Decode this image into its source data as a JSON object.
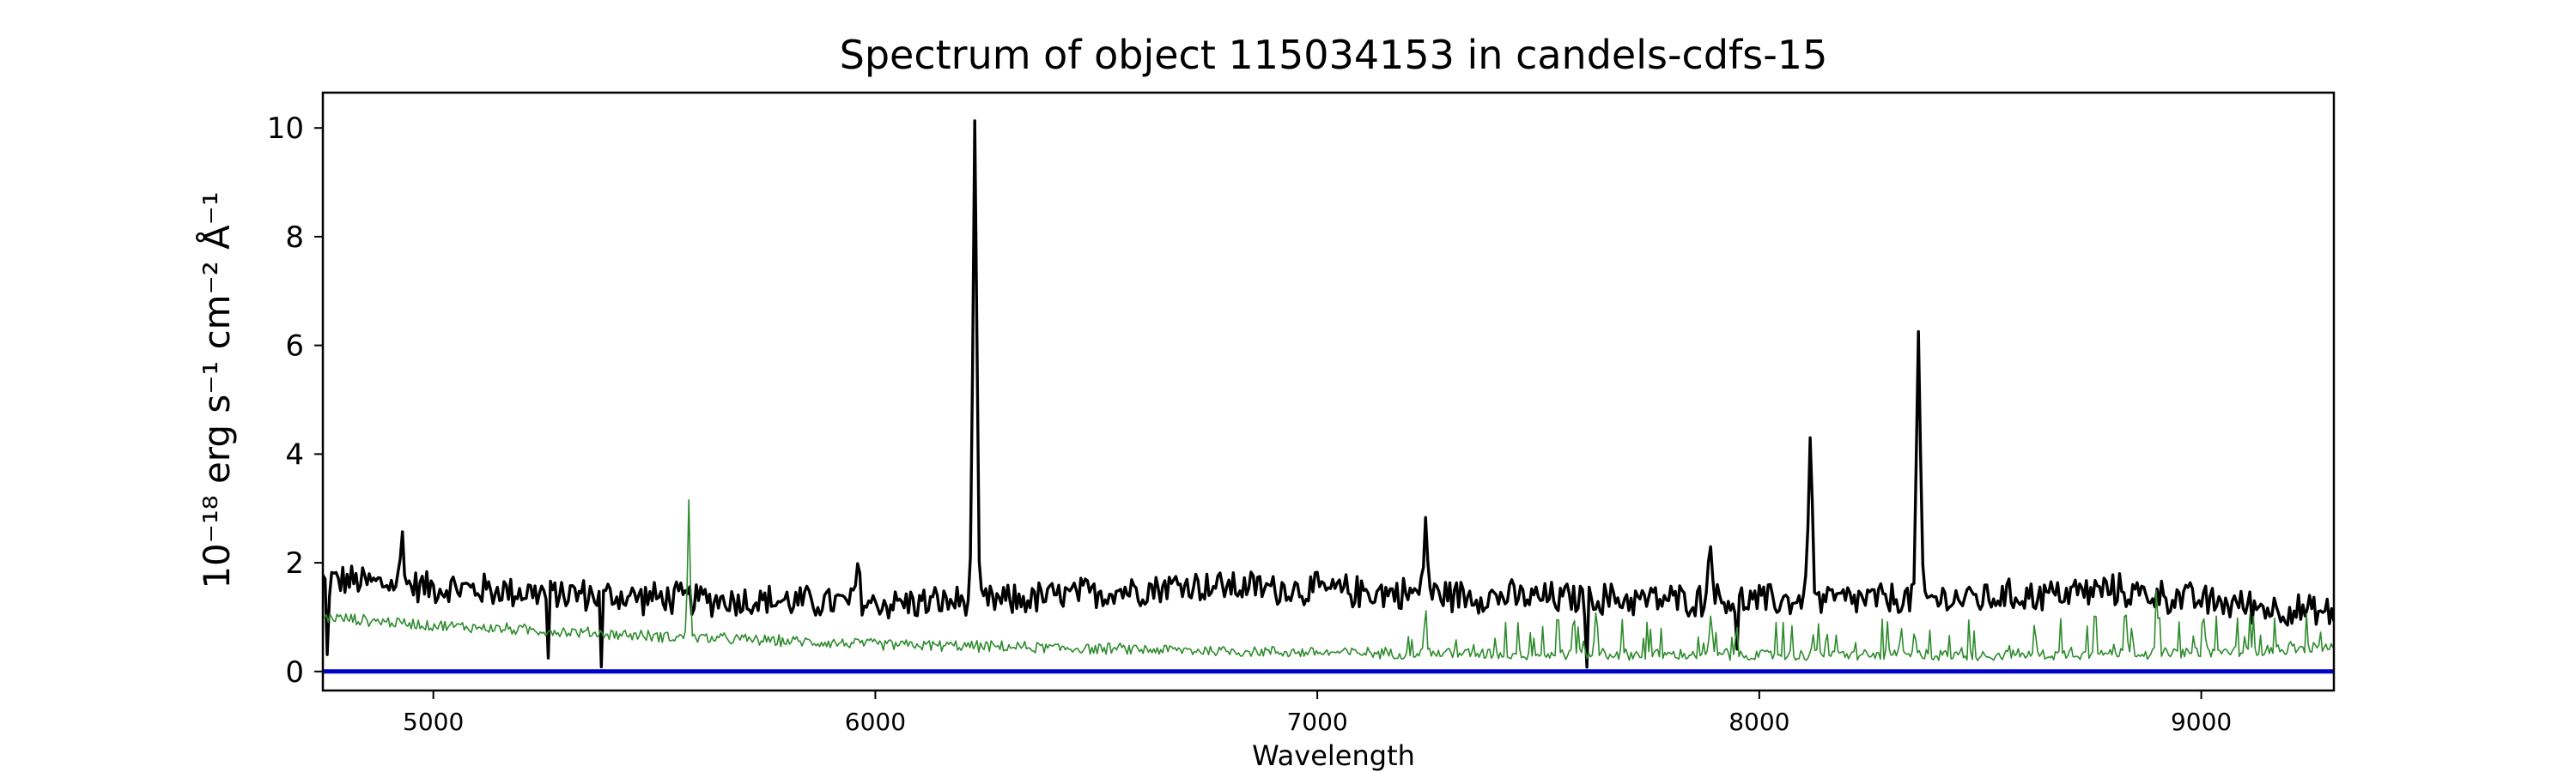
{
  "chart_data": {
    "type": "line",
    "title": "Spectrum of object 115034153 in candels-cdfs-15",
    "xlabel": "Wavelength",
    "ylabel": "10⁻¹⁸ erg s⁻¹ cm⁻² Å⁻¹",
    "xlim": [
      4750,
      9300
    ],
    "ylim": [
      -0.35,
      10.65
    ],
    "xticks": [
      5000,
      6000,
      7000,
      8000,
      9000
    ],
    "yticks": [
      0,
      2,
      4,
      6,
      8,
      10
    ],
    "grid": false,
    "legend": "none",
    "series": [
      {
        "role": "flux",
        "color": "#000000",
        "baseline": [
          [
            4750,
            1.7
          ],
          [
            5000,
            1.55
          ],
          [
            5500,
            1.35
          ],
          [
            6000,
            1.25
          ],
          [
            6300,
            1.3
          ],
          [
            6700,
            1.6
          ],
          [
            7000,
            1.5
          ],
          [
            7500,
            1.35
          ],
          [
            8000,
            1.3
          ],
          [
            8500,
            1.35
          ],
          [
            8800,
            1.5
          ],
          [
            9000,
            1.3
          ],
          [
            9300,
            1.05
          ]
        ],
        "lines": [
          [
            6225,
            10.15
          ],
          [
            8360,
            6.2
          ],
          [
            8115,
            4.5
          ],
          [
            7245,
            2.8
          ],
          [
            7890,
            2.6
          ],
          [
            4930,
            2.5
          ],
          [
            5960,
            1.95
          ]
        ],
        "dips": [
          [
            4760,
            0.2
          ],
          [
            5260,
            0.2
          ],
          [
            5380,
            0.2
          ],
          [
            7610,
            0.25
          ],
          [
            7950,
            0.35
          ]
        ]
      },
      {
        "role": "noise",
        "color": "#2e8b2e",
        "baseline": [
          [
            4750,
            1.0
          ],
          [
            5000,
            0.85
          ],
          [
            5500,
            0.65
          ],
          [
            6000,
            0.5
          ],
          [
            6500,
            0.42
          ],
          [
            7000,
            0.35
          ],
          [
            7500,
            0.32
          ],
          [
            8000,
            0.3
          ],
          [
            8500,
            0.3
          ],
          [
            9000,
            0.35
          ],
          [
            9300,
            0.45
          ]
        ],
        "lines": [
          [
            5578,
            3.2
          ],
          [
            7245,
            1.0
          ],
          [
            7890,
            1.0
          ],
          [
            8760,
            1.3
          ],
          [
            8830,
            1.1
          ],
          [
            8900,
            1.05
          ]
        ]
      },
      {
        "role": "zero",
        "color": "#0000cc",
        "values": [
          [
            4750,
            0
          ],
          [
            9300,
            0
          ]
        ]
      }
    ]
  }
}
